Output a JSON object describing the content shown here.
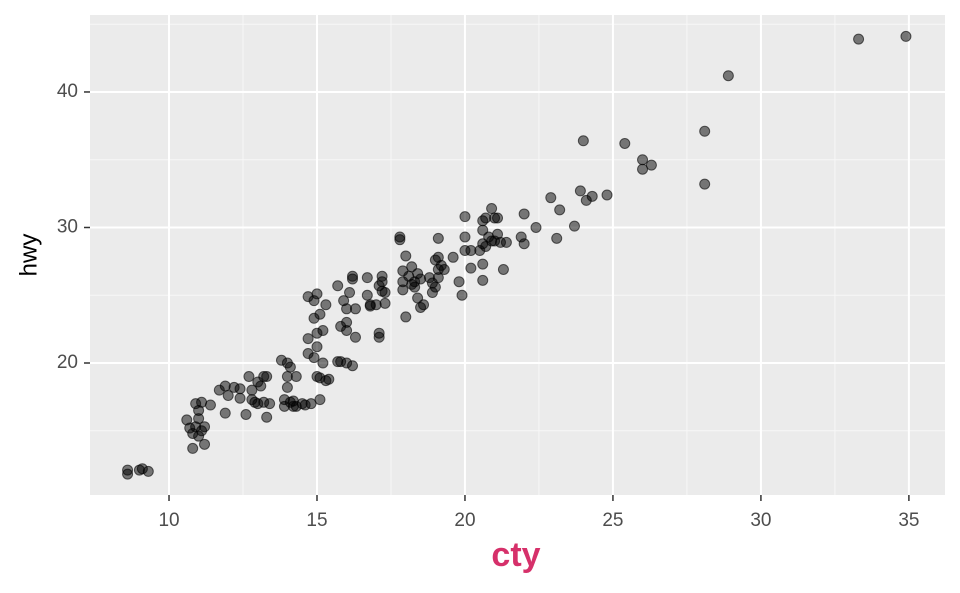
{
  "chart_data": {
    "type": "scatter",
    "xlabel": "cty",
    "ylabel": "hwy",
    "x": [
      8.6,
      8.6,
      9.0,
      9.1,
      9.3,
      10.6,
      10.7,
      10.8,
      10.8,
      10.9,
      11.0,
      11.0,
      11.1,
      11.2,
      11.2,
      10.9,
      11.1,
      11.4,
      11.0,
      11.7,
      11.9,
      12.0,
      12.2,
      12.4,
      12.4,
      11.9,
      12.7,
      12.8,
      12.9,
      12.6,
      13.0,
      13.0,
      13.2,
      13.2,
      13.1,
      13.3,
      13.4,
      13.3,
      12.8,
      13.8,
      14.0,
      14.1,
      14.0,
      13.9,
      13.9,
      14.0,
      14.1,
      14.2,
      14.3,
      14.5,
      14.3,
      14.6,
      14.2,
      14.8,
      14.7,
      14.7,
      14.7,
      14.9,
      14.9,
      15.0,
      15.0,
      15.0,
      15.1,
      14.9,
      15.0,
      15.1,
      15.2,
      15.1,
      15.3,
      15.4,
      15.2,
      15.3,
      15.7,
      15.9,
      15.8,
      16.0,
      16.0,
      16.0,
      16.1,
      16.2,
      16.2,
      16.3,
      16.3,
      15.8,
      16.0,
      16.2,
      15.7,
      16.7,
      16.7,
      16.8,
      17.0,
      17.1,
      17.2,
      17.3,
      17.2,
      17.2,
      17.1,
      17.1,
      17.3,
      16.8,
      17.8,
      17.8,
      17.9,
      17.9,
      18.0,
      18.0,
      18.1,
      18.2,
      18.2,
      18.3,
      18.4,
      18.5,
      18.6,
      18.5,
      18.4,
      18.3,
      17.9,
      18.8,
      18.9,
      19.0,
      19.1,
      19.0,
      19.2,
      19.1,
      19.1,
      18.9,
      19.3,
      19.6,
      19.1,
      19.8,
      19.9,
      20.0,
      20.0,
      20.0,
      20.2,
      20.2,
      20.5,
      20.6,
      20.6,
      20.6,
      20.6,
      20.7,
      20.7,
      20.8,
      20.6,
      20.9,
      21.0,
      21.1,
      21.0,
      21.1,
      21.2,
      20.9,
      21.4,
      21.3,
      21.9,
      22.0,
      22.0,
      22.4,
      22.9,
      23.2,
      23.1,
      23.7,
      23.9,
      24.0,
      24.1,
      24.3,
      24.8,
      25.4,
      26.0,
      26.0,
      26.3,
      28.1,
      28.1,
      28.9,
      33.3,
      34.9
    ],
    "values": [
      12.1,
      11.8,
      12.1,
      12.2,
      12.0,
      15.8,
      15.2,
      14.8,
      13.7,
      15.3,
      15.9,
      14.6,
      15.0,
      15.3,
      14.0,
      17.0,
      17.1,
      16.9,
      16.5,
      18.0,
      18.3,
      17.6,
      18.2,
      17.4,
      18.1,
      16.3,
      19.0,
      17.3,
      17.1,
      16.2,
      17.0,
      18.6,
      19.0,
      17.1,
      18.3,
      16.0,
      17.0,
      19.0,
      18.0,
      20.2,
      20.0,
      19.7,
      19.0,
      17.3,
      16.8,
      18.2,
      17.1,
      17.2,
      16.8,
      17.0,
      19.0,
      16.9,
      16.8,
      17.0,
      20.7,
      21.8,
      24.9,
      24.6,
      23.3,
      22.2,
      21.2,
      25.1,
      23.6,
      20.4,
      19.0,
      18.9,
      20.0,
      17.3,
      18.7,
      18.8,
      22.4,
      24.3,
      25.7,
      24.6,
      22.7,
      23.0,
      24.0,
      22.4,
      25.2,
      26.4,
      26.2,
      24.0,
      21.9,
      20.1,
      20.0,
      19.8,
      20.1,
      26.3,
      25.0,
      24.2,
      24.3,
      25.7,
      25.3,
      24.4,
      26.4,
      26.0,
      22.2,
      21.9,
      25.2,
      24.3,
      29.1,
      29.3,
      25.4,
      26.0,
      23.4,
      27.9,
      26.4,
      27.1,
      25.8,
      26.0,
      26.6,
      24.1,
      24.3,
      26.2,
      24.8,
      25.6,
      26.8,
      26.3,
      25.2,
      25.6,
      26.3,
      27.6,
      27.2,
      29.2,
      27.8,
      25.9,
      26.9,
      27.8,
      26.9,
      26.0,
      25.0,
      28.3,
      30.8,
      29.3,
      27.0,
      28.3,
      28.3,
      27.3,
      26.1,
      29.8,
      30.5,
      30.7,
      28.6,
      29.3,
      28.8,
      31.4,
      30.7,
      30.7,
      29.0,
      29.5,
      28.9,
      29.0,
      28.9,
      26.9,
      29.3,
      28.8,
      31.0,
      30.0,
      32.2,
      31.3,
      29.2,
      30.1,
      32.7,
      36.4,
      32.0,
      32.3,
      32.4,
      36.2,
      34.3,
      35.0,
      34.6,
      37.1,
      33.2,
      41.2,
      43.9,
      44.1
    ],
    "color": "#000000",
    "xlim": [
      7.33,
      36.22
    ],
    "ylim": [
      10.26,
      45.68
    ],
    "xticks": [
      10,
      15,
      20,
      25,
      30,
      35
    ],
    "yticks": [
      20,
      30,
      40
    ],
    "x_minor_grid": [
      12.5,
      17.5,
      22.5,
      27.5,
      32.5
    ],
    "y_minor_grid": [
      15,
      25,
      35,
      45
    ],
    "grid": true
  }
}
